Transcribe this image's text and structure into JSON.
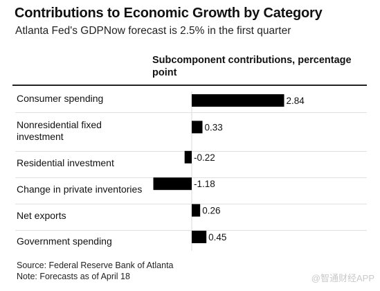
{
  "header": {
    "title": "Contributions to Economic Growth by Category",
    "subtitle": "Atlanta Fed's GDPNow forecast is 2.5% in the first quarter",
    "column_header": "Subcomponent contributions, percentage point"
  },
  "footer": {
    "source": "Source: Federal Reserve Bank of Atlanta",
    "note": "Note: Forecasts as of April 18"
  },
  "watermark": "@智通财经APP",
  "colors": {
    "bar": "#000000",
    "text": "#111111",
    "divider": "#e0e0e0"
  },
  "chart_data": {
    "type": "bar",
    "orientation": "horizontal",
    "categories": [
      "Consumer spending",
      "Nonresidential fixed investment",
      "Residential investment",
      "Change in private inventories",
      "Net exports",
      "Government spending"
    ],
    "category_lines": [
      [
        "Consumer spending"
      ],
      [
        "Nonresidential fixed",
        "investment"
      ],
      [
        "Residential investment"
      ],
      [
        "Change in private inventories"
      ],
      [
        "Net exports"
      ],
      [
        "Government spending"
      ]
    ],
    "values": [
      2.84,
      0.33,
      -0.22,
      -1.18,
      0.26,
      0.45
    ],
    "value_labels": [
      "2.84",
      "0.33",
      "-0.22",
      "-1.18",
      "0.26",
      "0.45"
    ],
    "title": "Contributions to Economic Growth by Category",
    "xlabel": "Subcomponent contributions, percentage point",
    "ylabel": ""
  }
}
